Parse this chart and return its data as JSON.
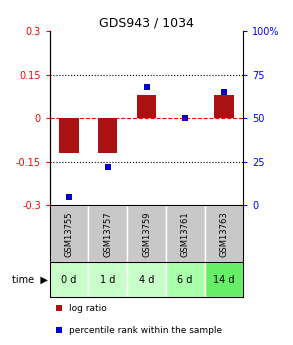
{
  "title": "GDS943 / 1034",
  "samples": [
    "GSM13755",
    "GSM13757",
    "GSM13759",
    "GSM13761",
    "GSM13763"
  ],
  "time_labels": [
    "0 d",
    "1 d",
    "4 d",
    "6 d",
    "14 d"
  ],
  "log_ratio": [
    -0.12,
    -0.12,
    0.08,
    0.0,
    0.08
  ],
  "percentile": [
    5,
    22,
    68,
    50,
    65
  ],
  "ylim_left": [
    -0.3,
    0.3
  ],
  "ylim_right": [
    0,
    100
  ],
  "bar_color": "#AA1111",
  "dot_color": "#0000CC",
  "yticks_left": [
    -0.3,
    -0.15,
    0.0,
    0.15,
    0.3
  ],
  "yticks_right": [
    0,
    25,
    50,
    75,
    100
  ],
  "ytick_labels_left": [
    "-0.3",
    "-0.15",
    "0",
    "0.15",
    "0.3"
  ],
  "ytick_labels_right": [
    "0",
    "25",
    "50",
    "75",
    "100%"
  ],
  "time_bg_colors": [
    "#c8ffc8",
    "#c8ffc8",
    "#c8ffc8",
    "#aaffaa",
    "#66ee66"
  ],
  "sample_bg_color": "#c8c8c8",
  "legend_log_ratio": "log ratio",
  "legend_percentile": "percentile rank within the sample",
  "bar_width": 0.5,
  "dot_size": 25,
  "title_fontsize": 9,
  "tick_fontsize": 7,
  "sample_fontsize": 6,
  "time_fontsize": 7,
  "legend_fontsize": 6.5
}
